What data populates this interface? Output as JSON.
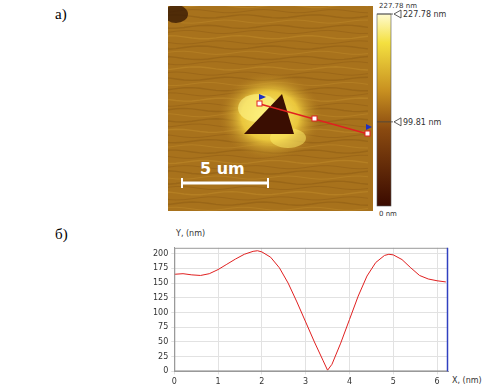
{
  "panel_labels": [
    "а)",
    "б)"
  ],
  "image": {
    "scale_bar": "5 um",
    "colorbar": {
      "range": [
        0,
        227.78
      ],
      "ticks": [
        {
          "value": 227.78,
          "label": "227.78 nm"
        },
        {
          "value": 0,
          "label": "0 nm"
        }
      ],
      "markers": [
        {
          "value": 227.78,
          "label": "227.78 nm"
        },
        {
          "value": 99.81,
          "label": "99.81 nm"
        }
      ]
    }
  },
  "chart_data": {
    "type": "line",
    "x_label": "X, (nm)",
    "y_label": "Y, (nm)",
    "x": [
      0,
      0.2,
      0.4,
      0.6,
      0.8,
      1.0,
      1.2,
      1.4,
      1.6,
      1.8,
      1.9,
      2.0,
      2.2,
      2.4,
      2.6,
      2.8,
      3.0,
      3.2,
      3.4,
      3.5,
      3.6,
      3.8,
      4.0,
      4.2,
      4.4,
      4.6,
      4.8,
      4.9,
      5.0,
      5.2,
      5.4,
      5.6,
      5.8,
      6.0,
      6.2
    ],
    "values": [
      165,
      166,
      164,
      163,
      166,
      173,
      182,
      191,
      199,
      204,
      205,
      203,
      194,
      176,
      150,
      118,
      84,
      50,
      18,
      2,
      12,
      48,
      88,
      128,
      162,
      185,
      197,
      199,
      198,
      190,
      176,
      163,
      157,
      154,
      152
    ],
    "color": "#e02020",
    "xlim": [
      0,
      6.25
    ],
    "xticks": [
      0,
      1,
      2,
      3,
      4,
      5,
      6
    ],
    "ylim": [
      0,
      210
    ],
    "yticks": [
      0,
      25,
      50,
      75,
      100,
      125,
      150,
      175,
      200
    ],
    "grid": true
  }
}
